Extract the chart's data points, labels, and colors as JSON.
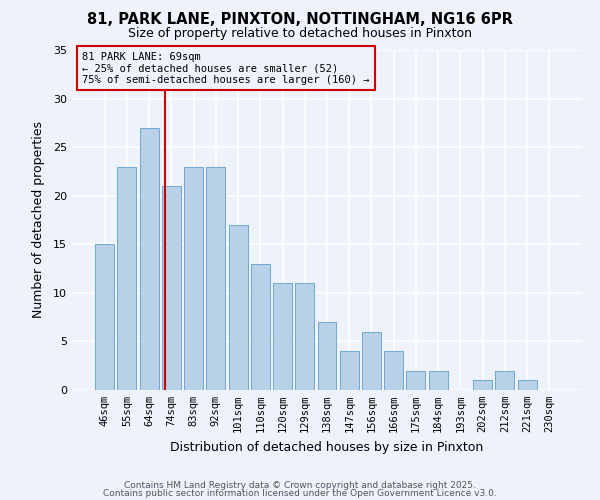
{
  "title1": "81, PARK LANE, PINXTON, NOTTINGHAM, NG16 6PR",
  "title2": "Size of property relative to detached houses in Pinxton",
  "xlabel": "Distribution of detached houses by size in Pinxton",
  "ylabel": "Number of detached properties",
  "bin_labels": [
    "46sqm",
    "55sqm",
    "64sqm",
    "74sqm",
    "83sqm",
    "92sqm",
    "101sqm",
    "110sqm",
    "120sqm",
    "129sqm",
    "138sqm",
    "147sqm",
    "156sqm",
    "166sqm",
    "175sqm",
    "184sqm",
    "193sqm",
    "202sqm",
    "212sqm",
    "221sqm",
    "230sqm"
  ],
  "bar_values": [
    15,
    23,
    27,
    21,
    23,
    23,
    17,
    13,
    11,
    11,
    7,
    4,
    6,
    4,
    2,
    2,
    0,
    1,
    2,
    1,
    0
  ],
  "bar_color": "#b8d0e8",
  "bar_edgecolor": "#6fa8d0",
  "background_color": "#eef2fb",
  "grid_color": "#ffffff",
  "vline_x": 2.72,
  "vline_color": "#cc0000",
  "annotation_text": "81 PARK LANE: 69sqm\n← 25% of detached houses are smaller (52)\n75% of semi-detached houses are larger (160) →",
  "annotation_box_edgecolor": "#cc0000",
  "annotation_box_facecolor": "#eef2fb",
  "ylim": [
    0,
    35
  ],
  "yticks": [
    0,
    5,
    10,
    15,
    20,
    25,
    30,
    35
  ],
  "footnote1": "Contains HM Land Registry data © Crown copyright and database right 2025.",
  "footnote2": "Contains public sector information licensed under the Open Government Licence v3.0."
}
